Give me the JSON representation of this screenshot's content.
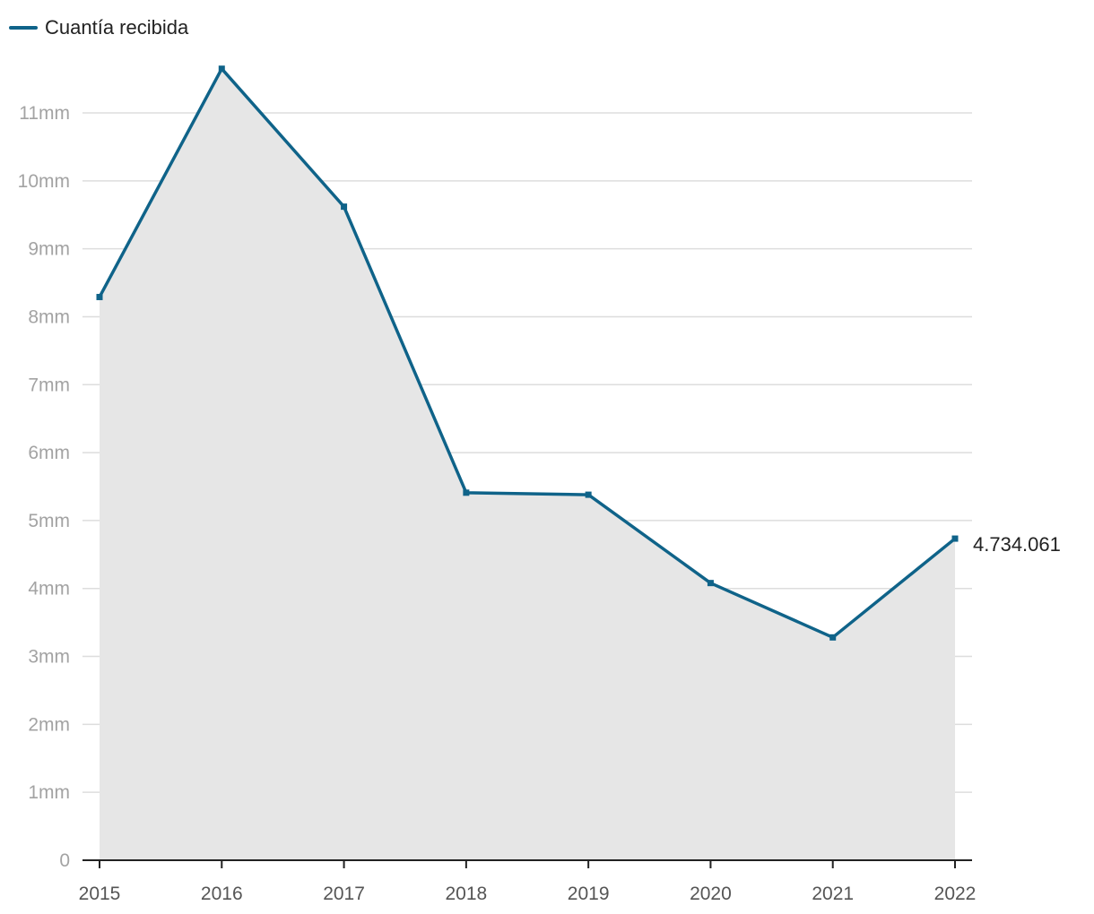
{
  "chart_data": {
    "type": "area",
    "series": [
      {
        "name": "Cuantía recibida",
        "values": [
          8290000,
          11650000,
          9620000,
          5410000,
          5380000,
          4080000,
          3280000,
          4734061
        ]
      }
    ],
    "x": [
      "2015",
      "2016",
      "2017",
      "2018",
      "2019",
      "2020",
      "2021",
      "2022"
    ],
    "y_ticks": [
      {
        "value": 0,
        "label": "0"
      },
      {
        "value": 1000000,
        "label": "1mm"
      },
      {
        "value": 2000000,
        "label": "2mm"
      },
      {
        "value": 3000000,
        "label": "3mm"
      },
      {
        "value": 4000000,
        "label": "4mm"
      },
      {
        "value": 5000000,
        "label": "5mm"
      },
      {
        "value": 6000000,
        "label": "6mm"
      },
      {
        "value": 7000000,
        "label": "7mm"
      },
      {
        "value": 8000000,
        "label": "8mm"
      },
      {
        "value": 9000000,
        "label": "9mm"
      },
      {
        "value": 10000000,
        "label": "10mm"
      },
      {
        "value": 11000000,
        "label": "11mm"
      }
    ],
    "ylim": [
      0,
      11000000
    ],
    "grid": true,
    "legend": "top-left",
    "end_label": "4.734.061",
    "title": "",
    "xlabel": "",
    "ylabel": "",
    "colors": {
      "line": "#0f6389",
      "area": "#e6e6e6",
      "grid": "#dddddd",
      "axis": "#222222"
    }
  }
}
